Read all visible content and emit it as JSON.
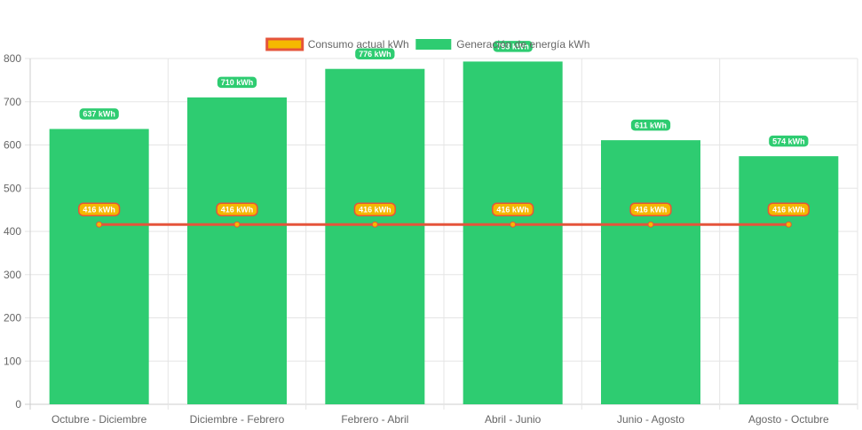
{
  "chart_data": {
    "type": "bar",
    "title": "",
    "xlabel": "",
    "ylabel": "",
    "categories": [
      "Octubre - Diciembre",
      "Diciembre - Febrero",
      "Febrero - Abril",
      "Abril - Junio",
      "Junio - Agosto",
      "Agosto - Octubre"
    ],
    "ylim": [
      0,
      800
    ],
    "yticks": [
      0,
      100,
      200,
      300,
      400,
      500,
      600,
      700,
      800
    ],
    "grid": true,
    "legend_position": "top",
    "unit_suffix": " kWh",
    "series": [
      {
        "name": "Consumo actual kWh",
        "type": "line",
        "values": [
          416,
          416,
          416,
          416,
          416,
          416
        ],
        "color": "#e5543b",
        "fill_color": "#f5b800"
      },
      {
        "name": "Generación de energía kWh",
        "type": "bar",
        "values": [
          637,
          710,
          776,
          793,
          611,
          574
        ],
        "color": "#2ecc71"
      }
    ]
  }
}
